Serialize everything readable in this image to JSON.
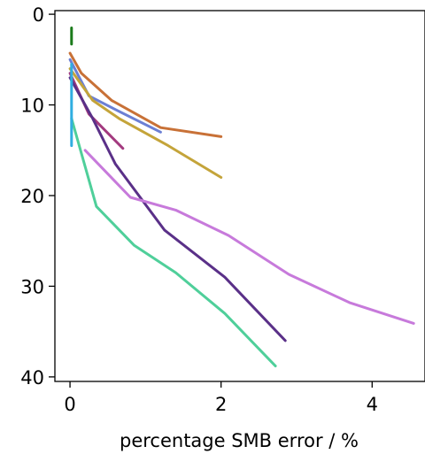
{
  "chart_data": {
    "type": "line",
    "title": "",
    "xlabel": "percentage SMB error / %",
    "ylabel": "",
    "xlim": [
      -0.2,
      4.7
    ],
    "ylim": [
      40.5,
      -0.4
    ],
    "y_inverted": true,
    "xticks": [
      0,
      2,
      4
    ],
    "xtick_labels": [
      "0",
      "2",
      "4"
    ],
    "yticks": [
      0,
      10,
      20,
      30,
      40
    ],
    "ytick_labels": [
      "0",
      "10",
      "20",
      "30",
      "40"
    ],
    "grid": false,
    "legend": "none",
    "series": [
      {
        "color": "#1a7a1a",
        "x": [
          0.02,
          0.02,
          0.02
        ],
        "y": [
          1.5,
          2.5,
          3.3
        ]
      },
      {
        "color": "#c87137",
        "x": [
          0.0,
          0.15,
          0.55,
          1.2,
          2.0
        ],
        "y": [
          4.3,
          6.5,
          9.5,
          12.5,
          13.5
        ]
      },
      {
        "color": "#6b7fd4",
        "x": [
          0.0,
          0.25,
          0.6,
          1.2
        ],
        "y": [
          5.0,
          9.0,
          10.5,
          13.0
        ]
      },
      {
        "color": "#c4a43a",
        "x": [
          0.0,
          0.3,
          0.65,
          1.3,
          2.0
        ],
        "y": [
          6.0,
          9.5,
          11.5,
          14.5,
          18.0
        ]
      },
      {
        "color": "#a33a7f",
        "x": [
          0.0,
          0.25,
          0.7
        ],
        "y": [
          6.5,
          11.0,
          14.8
        ]
      },
      {
        "color": "#5a3088",
        "x": [
          0.0,
          0.3,
          0.6,
          1.25,
          2.05,
          2.85
        ],
        "y": [
          7.0,
          11.5,
          16.5,
          23.8,
          29.0,
          36.0
        ]
      },
      {
        "color": "#c77adb",
        "x": [
          0.2,
          0.8,
          1.4,
          2.1,
          2.9,
          3.7,
          4.55
        ],
        "y": [
          15.0,
          20.2,
          21.6,
          24.4,
          28.7,
          31.8,
          34.1
        ]
      },
      {
        "color": "#4fcf9a",
        "x": [
          0.02,
          0.35,
          0.85,
          1.4,
          2.05,
          2.72
        ],
        "y": [
          11.5,
          21.2,
          25.5,
          28.5,
          33.0,
          38.8
        ]
      },
      {
        "color": "#30aee0",
        "x": [
          0.02,
          0.02,
          0.02
        ],
        "y": [
          5.5,
          10.0,
          14.5
        ]
      }
    ]
  }
}
